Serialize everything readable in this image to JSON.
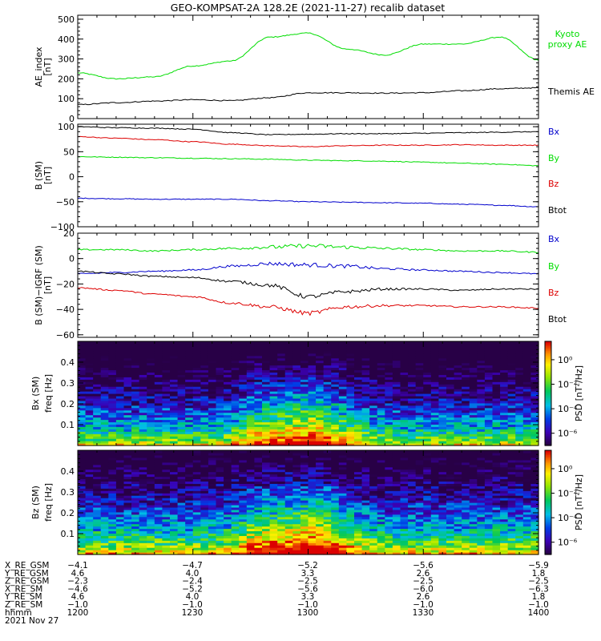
{
  "title": "GEO-KOMPSAT-2A 128.2E (2021-11-27) recalib dataset",
  "colors": {
    "green": "#00dd00",
    "black": "#000000",
    "blue": "#0000cc",
    "red": "#dd0000"
  },
  "chart_data": [
    {
      "type": "line",
      "ylabel": "AE_index",
      "yunit": "[nT]",
      "ylim": [
        0,
        520
      ],
      "yticks": [
        "500",
        "400",
        "300",
        "200",
        "100",
        "0"
      ],
      "x": [
        1200,
        1210,
        1220,
        1230,
        1240,
        1250,
        1300,
        1310,
        1320,
        1330,
        1340,
        1350,
        1400
      ],
      "series": [
        {
          "name": "Kyoto\nproxy AE",
          "color": "green",
          "values": [
            230,
            200,
            210,
            265,
            290,
            410,
            430,
            350,
            320,
            375,
            375,
            410,
            295
          ]
        },
        {
          "name": "Themis AE",
          "color": "black",
          "values": [
            70,
            80,
            88,
            95,
            90,
            105,
            130,
            130,
            128,
            130,
            140,
            150,
            155
          ]
        }
      ]
    },
    {
      "type": "line",
      "ylabel": "B (SM)",
      "yunit": "[nT]",
      "ylim": [
        -100,
        105
      ],
      "yticks": [
        "100",
        "50",
        "0",
        "−50",
        "−100"
      ],
      "x": [
        1200,
        1210,
        1220,
        1230,
        1240,
        1250,
        1300,
        1310,
        1320,
        1330,
        1340,
        1350,
        1400
      ],
      "series": [
        {
          "name": "Bx",
          "color": "blue",
          "values": [
            -43,
            -44,
            -45,
            -45,
            -45,
            -48,
            -50,
            -51,
            -52,
            -53,
            -55,
            -57,
            -60
          ]
        },
        {
          "name": "By",
          "color": "green",
          "values": [
            40,
            39,
            38,
            37,
            36,
            35,
            33,
            32,
            31,
            29,
            27,
            25,
            22
          ]
        },
        {
          "name": "Bz",
          "color": "red",
          "values": [
            80,
            77,
            74,
            70,
            65,
            62,
            60,
            62,
            63,
            63,
            64,
            63,
            63
          ]
        },
        {
          "name": "Btot",
          "color": "black",
          "values": [
            100,
            98,
            97,
            95,
            88,
            84,
            85,
            86,
            86,
            87,
            88,
            89,
            90
          ]
        }
      ]
    },
    {
      "type": "line",
      "ylabel": "B (SM)−IGRF (SM)",
      "yunit": "[nT]",
      "ylim": [
        -62,
        20
      ],
      "yticks": [
        "20",
        "0",
        "−20",
        "−40",
        "−60"
      ],
      "x": [
        1200,
        1210,
        1220,
        1230,
        1240,
        1250,
        1300,
        1310,
        1320,
        1330,
        1340,
        1350,
        1400
      ],
      "series": [
        {
          "name": "Bx",
          "color": "blue",
          "values": [
            -12,
            -11,
            -10,
            -9,
            -6,
            -4,
            -5,
            -6,
            -8,
            -9,
            -10,
            -11,
            -12
          ]
        },
        {
          "name": "By",
          "color": "green",
          "values": [
            7,
            7,
            6,
            7,
            8,
            9,
            10,
            9,
            8,
            7,
            6,
            6,
            5
          ]
        },
        {
          "name": "Bz",
          "color": "red",
          "values": [
            -23,
            -25,
            -28,
            -30,
            -35,
            -38,
            -43,
            -38,
            -37,
            -37,
            -38,
            -38,
            -39
          ]
        },
        {
          "name": "Btot",
          "color": "black",
          "values": [
            -10,
            -12,
            -14,
            -15,
            -18,
            -21,
            -30,
            -26,
            -24,
            -24,
            -25,
            -24,
            -24
          ]
        }
      ]
    },
    {
      "type": "heatmap",
      "ylabel": "Bx (SM)",
      "yunit": "freq [Hz]",
      "ylim": [
        0,
        0.5
      ],
      "yticks": [
        "0.4",
        "0.3",
        "0.2",
        "0.1"
      ],
      "colorbar": {
        "label": "PSD [nT²/Hz]",
        "ticks": [
          "10⁰",
          "10⁻²",
          "10⁻⁴",
          "10⁻⁶"
        ],
        "range": [
          -7,
          1.5
        ]
      }
    },
    {
      "type": "heatmap",
      "ylabel": "Bz (SM)",
      "yunit": "freq [Hz]",
      "ylim": [
        0,
        0.5
      ],
      "yticks": [
        "0.4",
        "0.3",
        "0.2",
        "0.1"
      ],
      "colorbar": {
        "label": "PSD [nT²/Hz]",
        "ticks": [
          "10⁰",
          "10⁻²",
          "10⁻⁴",
          "10⁻⁶"
        ],
        "range": [
          -7,
          1.5
        ]
      }
    }
  ],
  "ephemeris": {
    "rows": [
      {
        "label": "X_RE_GSM",
        "values": [
          "−4.1",
          "−4.7",
          "−5.2",
          "−5.6",
          "−5.9"
        ]
      },
      {
        "label": "Y_RE_GSM",
        "values": [
          "4.6",
          "4.0",
          "3.3",
          "2.6",
          "1.8"
        ]
      },
      {
        "label": "Z_RE_GSM",
        "values": [
          "−2.3",
          "−2.4",
          "−2.5",
          "−2.5",
          "−2.5"
        ]
      },
      {
        "label": "X_RE_SM",
        "values": [
          "−4.6",
          "−5.2",
          "−5.6",
          "−6.0",
          "−6.3"
        ]
      },
      {
        "label": "Y_RE_SM",
        "values": [
          "4.6",
          "4.0",
          "3.3",
          "2.6",
          "1.8"
        ]
      },
      {
        "label": "Z_RE_SM",
        "values": [
          "−1.0",
          "−1.0",
          "−1.0",
          "−1.0",
          "−1.0"
        ]
      },
      {
        "label": "hhmm",
        "values": [
          "1200",
          "1230",
          "1300",
          "1330",
          "1400"
        ]
      }
    ],
    "date": "2021 Nov 27"
  }
}
